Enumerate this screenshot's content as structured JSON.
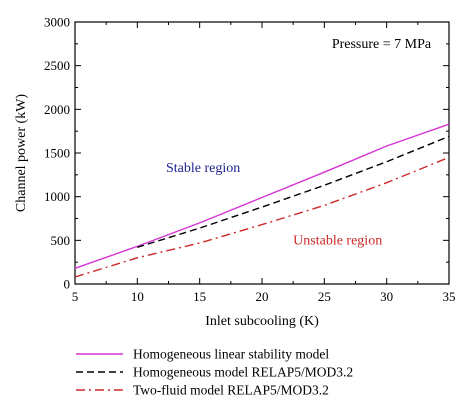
{
  "chart_data": {
    "type": "line",
    "xlabel": "Inlet subcooling (K)",
    "ylabel": "Channel power (kW)",
    "xlim": [
      5,
      35
    ],
    "ylim": [
      0,
      3000
    ],
    "x_ticks": [
      5,
      10,
      15,
      20,
      25,
      30,
      35
    ],
    "y_ticks": [
      0,
      500,
      1000,
      1500,
      2000,
      2500,
      3000
    ],
    "grid": false,
    "legend_position": "below",
    "series": [
      {
        "name": "Homogeneous linear stability model",
        "color": "#d633d6",
        "dash": "solid",
        "x": [
          5,
          10,
          15,
          20,
          25,
          30,
          35
        ],
        "y": [
          180,
          430,
          700,
          990,
          1280,
          1580,
          1830
        ]
      },
      {
        "name": "Homogeneous model RELAP5/MOD3.2",
        "color": "#000000",
        "dash": "dash",
        "x": [
          10,
          15,
          20,
          25,
          30,
          35
        ],
        "y": [
          420,
          640,
          880,
          1130,
          1400,
          1690
        ]
      },
      {
        "name": "Two-fluid model RELAP5/MOD3.2",
        "color": "#cc2a2a",
        "dash": "dashdot",
        "x": [
          5,
          10,
          15,
          20,
          25,
          30,
          35
        ],
        "y": [
          80,
          300,
          470,
          680,
          900,
          1160,
          1450
        ]
      }
    ],
    "annotations": [
      {
        "text": "Pressure = 7 MPa",
        "x": 25.6,
        "y": 2700,
        "color": "#000000"
      },
      {
        "text": "Stable region",
        "x": 12.3,
        "y": 1280,
        "color": "#1f1f8f"
      },
      {
        "text": "Unstable region",
        "x": 22.5,
        "y": 450,
        "color": "#cc2a2a"
      }
    ]
  }
}
